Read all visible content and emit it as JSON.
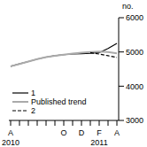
{
  "chart_data": {
    "type": "line",
    "y_label": "no.",
    "categories": [
      "A",
      null,
      null,
      null,
      null,
      null,
      "O",
      null,
      "D",
      null,
      "F",
      null,
      "A"
    ],
    "annotations": [
      {
        "text": "2010",
        "x": 0
      },
      {
        "text": "2011",
        "x": 10
      }
    ],
    "series": [
      {
        "name": "1",
        "color": "#000000",
        "line_style": "solid",
        "values": [
          4580,
          4650,
          4720,
          4790,
          4850,
          4890,
          4920,
          4940,
          4950,
          4960,
          4980,
          5100,
          5250
        ]
      },
      {
        "name": "Published trend",
        "color": "#aaaaaa",
        "line_style": "solid",
        "values": [
          4580,
          4650,
          4720,
          4790,
          4850,
          4890,
          4920,
          4950,
          4980,
          5000,
          5010,
          5000,
          4960
        ]
      },
      {
        "name": "2",
        "color": "#000000",
        "line_style": "dashed",
        "values": [
          null,
          null,
          null,
          null,
          null,
          null,
          null,
          null,
          null,
          4980,
          4940,
          4890,
          4840
        ]
      }
    ],
    "ylim": [
      3000,
      6000
    ],
    "yticks": [
      3000,
      4000,
      5000,
      6000
    ],
    "legend": "lower left",
    "grid": false
  }
}
